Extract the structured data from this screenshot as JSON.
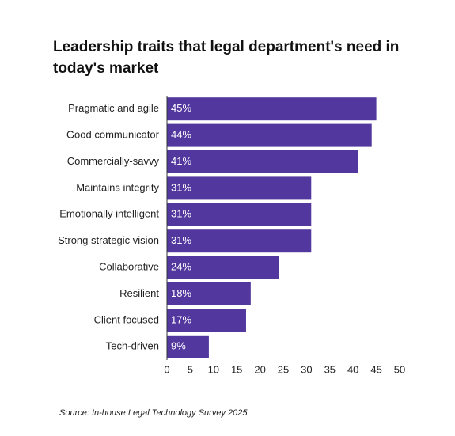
{
  "chart_data": {
    "type": "bar",
    "orientation": "horizontal",
    "title": [
      "Leadership traits that legal department's need in",
      "today's market"
    ],
    "categories": [
      "Pragmatic and agile",
      "Good communicator",
      "Commercially-savvy",
      "Maintains integrity",
      "Emotionally intelligent",
      "Strong strategic vision",
      "Collaborative",
      "Resilient",
      "Client focused",
      "Tech-driven"
    ],
    "values": [
      45,
      44,
      41,
      31,
      31,
      31,
      24,
      18,
      17,
      9
    ],
    "value_labels": [
      "45%",
      "44%",
      "41%",
      "31%",
      "31%",
      "31%",
      "24%",
      "18%",
      "17%",
      "9%"
    ],
    "color": "#52379e",
    "xlim": [
      0,
      50
    ],
    "xticks": [
      0,
      5,
      10,
      15,
      20,
      25,
      30,
      35,
      40,
      45,
      50
    ],
    "source": "Source: In-house Legal Technology Survey 2025"
  }
}
